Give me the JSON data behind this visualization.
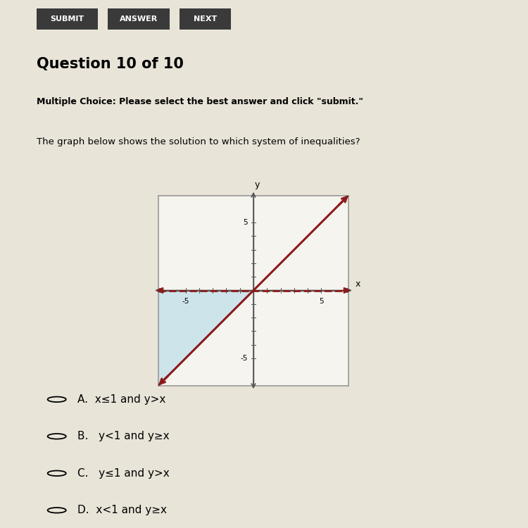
{
  "title": "The graph below shows the solution to which system of inequalities?",
  "question_header": "Question 10 of 10",
  "question_subheader": "Multiple Choice: Please select the best answer and click \"submit.\"",
  "buttons": [
    "SUBMIT",
    "ANSWER",
    "NEXT"
  ],
  "xlim": [
    -7,
    7
  ],
  "ylim": [
    -7,
    7
  ],
  "diagonal_line_color": "#8B1A1A",
  "dashed_line_color": "#8B1A1A",
  "dashed_line_y": 0,
  "diagonal_slope": 1,
  "diagonal_intercept": 0,
  "shade_color": "#add8e6",
  "shade_alpha": 0.55,
  "choices": [
    "A.  x≤1 and y>x",
    "B.   y<1 and y≥x",
    "C.   y≤1 and y>x",
    "D.  x<1 and y≥x"
  ],
  "bg_color": "#e8e4d8",
  "plot_bg_color": "#f5f4ef",
  "axis_color": "#555555",
  "button_bg": "#3a3a3a",
  "button_text": "#ffffff",
  "left_border_color": "#c87020",
  "border_width": 18
}
